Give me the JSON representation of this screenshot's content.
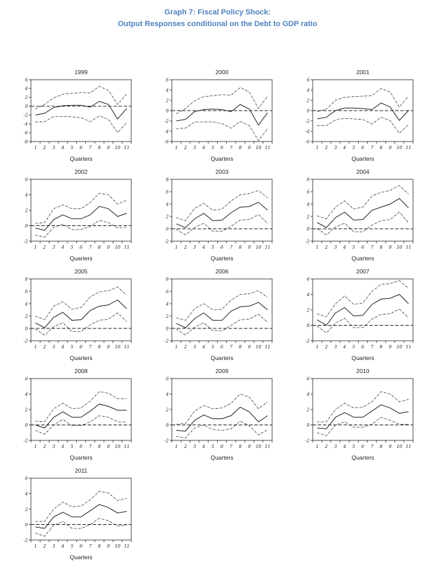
{
  "page": {
    "title_line1": "Graph 7: Fiscal Policy Shock:",
    "title_line2": "Output Responses conditional on the Debt to GDP ratio",
    "title_color": "#4f81bd",
    "line_color": "#222222",
    "background": "#ffffff"
  },
  "chart_data": {
    "type": "line",
    "layout": "3-column grid of 13 small multiples, framed axes, no gridlines, no legend",
    "x": [
      1,
      2,
      3,
      4,
      5,
      6,
      7,
      8,
      9,
      10,
      11
    ],
    "xlabel": "Quarters",
    "ytick_step": 2,
    "zero_line": "horizontal dashed line at y = 0 in every panel",
    "series_style": {
      "upper": "dash-dot",
      "center": "solid",
      "lower": "dash-dot"
    },
    "charts": [
      {
        "title": "1999",
        "ylim": [
          -8,
          6
        ],
        "upper": [
          -0.6,
          0.4,
          1.9,
          2.7,
          2.9,
          3.1,
          3.0,
          4.5,
          3.6,
          0.4,
          2.8
        ],
        "center": [
          -2.0,
          -1.6,
          -0.3,
          0.1,
          0.2,
          0.2,
          -0.2,
          1.1,
          0.4,
          -2.9,
          -0.5
        ],
        "lower": [
          -3.6,
          -3.5,
          -2.3,
          -2.3,
          -2.4,
          -2.6,
          -3.5,
          -2.2,
          -3.0,
          -6.0,
          -3.7
        ]
      },
      {
        "title": "2000",
        "ylim": [
          -6,
          6
        ],
        "upper": [
          -0.6,
          0.4,
          1.9,
          2.7,
          2.9,
          3.1,
          3.0,
          4.5,
          3.6,
          0.4,
          2.8
        ],
        "center": [
          -2.0,
          -1.7,
          -0.2,
          0.2,
          0.3,
          0.2,
          -0.2,
          1.2,
          0.3,
          -2.8,
          -0.4
        ],
        "lower": [
          -3.5,
          -3.4,
          -2.2,
          -2.2,
          -2.2,
          -2.5,
          -3.4,
          -2.1,
          -2.9,
          -5.8,
          -3.5
        ]
      },
      {
        "title": "2001",
        "ylim": [
          -6,
          6
        ],
        "upper": [
          -0.2,
          0.3,
          2.0,
          2.6,
          2.7,
          2.8,
          2.9,
          4.3,
          3.6,
          0.7,
          2.8
        ],
        "center": [
          -1.6,
          -1.3,
          0.0,
          0.5,
          0.5,
          0.4,
          0.2,
          1.5,
          0.7,
          -1.9,
          0.0
        ],
        "lower": [
          -2.9,
          -2.9,
          -1.8,
          -1.5,
          -1.6,
          -1.7,
          -2.6,
          -1.3,
          -1.9,
          -4.4,
          -2.7
        ]
      },
      {
        "title": "2002",
        "ylim": [
          -2,
          6
        ],
        "upper": [
          0.3,
          0.4,
          2.2,
          2.7,
          2.2,
          2.2,
          3.0,
          4.2,
          4.0,
          2.8,
          3.3
        ],
        "center": [
          -0.3,
          -0.6,
          0.8,
          1.4,
          0.9,
          0.9,
          1.4,
          2.5,
          2.2,
          1.2,
          1.6
        ],
        "lower": [
          -1.2,
          -1.5,
          -0.2,
          0.2,
          -0.5,
          -0.5,
          -0.1,
          0.7,
          0.4,
          -0.3,
          -0.2
        ]
      },
      {
        "title": "2003",
        "ylim": [
          -2,
          8
        ],
        "upper": [
          1.8,
          1.3,
          3.3,
          4.1,
          3.0,
          3.2,
          4.5,
          5.5,
          5.7,
          6.2,
          5.0
        ],
        "center": [
          0.8,
          0.2,
          1.6,
          2.5,
          1.3,
          1.4,
          2.6,
          3.5,
          3.6,
          4.3,
          3.0
        ],
        "lower": [
          -0.1,
          -1.0,
          0.2,
          0.9,
          -0.4,
          -0.4,
          0.4,
          1.4,
          1.5,
          2.3,
          0.9
        ]
      },
      {
        "title": "2004",
        "ylim": [
          -2,
          8
        ],
        "upper": [
          2.1,
          1.6,
          3.5,
          4.5,
          3.2,
          3.5,
          5.3,
          5.9,
          6.2,
          7.0,
          5.6
        ],
        "center": [
          1.0,
          0.2,
          1.8,
          2.7,
          1.4,
          1.5,
          3.0,
          3.5,
          4.0,
          4.9,
          3.4
        ],
        "lower": [
          0.0,
          -1.0,
          0.3,
          0.9,
          -0.5,
          -0.5,
          0.6,
          1.3,
          1.5,
          2.7,
          1.0
        ]
      },
      {
        "title": "2005",
        "ylim": [
          -2,
          8
        ],
        "upper": [
          2.0,
          1.4,
          3.6,
          4.3,
          3.1,
          3.4,
          5.1,
          5.9,
          6.1,
          6.7,
          5.4
        ],
        "center": [
          0.9,
          0.1,
          1.8,
          2.6,
          1.3,
          1.4,
          2.9,
          3.6,
          3.8,
          4.6,
          3.2
        ],
        "lower": [
          -0.1,
          -1.1,
          0.3,
          0.9,
          -0.5,
          -0.5,
          0.6,
          1.3,
          1.5,
          2.5,
          1.1
        ]
      },
      {
        "title": "2006",
        "ylim": [
          -2,
          8
        ],
        "upper": [
          1.7,
          1.3,
          3.2,
          4.0,
          3.0,
          3.1,
          4.6,
          5.5,
          5.6,
          6.1,
          5.0
        ],
        "center": [
          0.8,
          0.1,
          1.6,
          2.5,
          1.3,
          1.3,
          2.8,
          3.5,
          3.6,
          4.2,
          3.0
        ],
        "lower": [
          -0.1,
          -1.1,
          0.2,
          0.9,
          -0.4,
          -0.4,
          0.5,
          1.4,
          1.5,
          2.3,
          1.0
        ]
      },
      {
        "title": "2007",
        "ylim": [
          -2,
          6
        ],
        "upper": [
          1.5,
          1.1,
          2.8,
          3.8,
          2.7,
          2.9,
          4.4,
          5.3,
          5.4,
          5.8,
          4.8
        ],
        "center": [
          0.7,
          0.0,
          1.6,
          2.3,
          1.2,
          1.3,
          2.7,
          3.4,
          3.5,
          4.0,
          2.8
        ],
        "lower": [
          -0.1,
          -1.0,
          0.3,
          0.9,
          -0.3,
          -0.3,
          0.8,
          1.4,
          1.5,
          2.1,
          1.0
        ]
      },
      {
        "title": "2008",
        "ylim": [
          -2,
          6
        ],
        "upper": [
          0.5,
          0.4,
          2.1,
          2.8,
          2.1,
          2.2,
          3.1,
          4.3,
          4.1,
          3.4,
          3.4
        ],
        "center": [
          0.0,
          -0.4,
          1.0,
          1.7,
          1.0,
          1.0,
          1.8,
          2.7,
          2.4,
          1.9,
          1.9
        ],
        "lower": [
          -0.7,
          -1.2,
          0.0,
          0.7,
          -0.1,
          -0.1,
          0.4,
          1.2,
          1.0,
          0.4,
          0.4
        ]
      },
      {
        "title": "2009",
        "ylim": [
          -2,
          6
        ],
        "upper": [
          0.1,
          0.2,
          1.8,
          2.5,
          2.1,
          2.2,
          2.8,
          4.0,
          3.6,
          2.1,
          3.0
        ],
        "center": [
          -0.7,
          -0.8,
          0.6,
          1.3,
          0.8,
          0.8,
          1.2,
          2.3,
          1.7,
          0.4,
          1.2
        ],
        "lower": [
          -1.5,
          -1.7,
          -0.4,
          0.0,
          -0.6,
          -0.7,
          -0.5,
          0.5,
          -0.1,
          -1.3,
          -0.6
        ]
      },
      {
        "title": "2010",
        "ylim": [
          -2,
          6
        ],
        "upper": [
          0.4,
          0.4,
          2.0,
          2.8,
          2.2,
          2.3,
          3.0,
          4.3,
          4.0,
          3.0,
          3.3
        ],
        "center": [
          -0.4,
          -0.5,
          1.0,
          1.6,
          1.0,
          1.0,
          1.8,
          2.6,
          2.2,
          1.5,
          1.7
        ],
        "lower": [
          -1.0,
          -1.4,
          0.0,
          0.4,
          -0.3,
          -0.3,
          0.1,
          1.0,
          0.6,
          0.1,
          0.1
        ]
      },
      {
        "title": "2011",
        "ylim": [
          -2,
          6
        ],
        "upper": [
          0.4,
          0.4,
          2.0,
          2.9,
          2.3,
          2.4,
          3.2,
          4.3,
          4.1,
          3.1,
          3.4
        ],
        "center": [
          -0.3,
          -0.5,
          1.0,
          1.6,
          1.0,
          1.0,
          1.8,
          2.6,
          2.2,
          1.5,
          1.7
        ],
        "lower": [
          -1.1,
          -1.5,
          -0.1,
          0.4,
          -0.5,
          -0.5,
          0.0,
          0.8,
          0.5,
          -0.2,
          -0.1
        ]
      }
    ]
  }
}
